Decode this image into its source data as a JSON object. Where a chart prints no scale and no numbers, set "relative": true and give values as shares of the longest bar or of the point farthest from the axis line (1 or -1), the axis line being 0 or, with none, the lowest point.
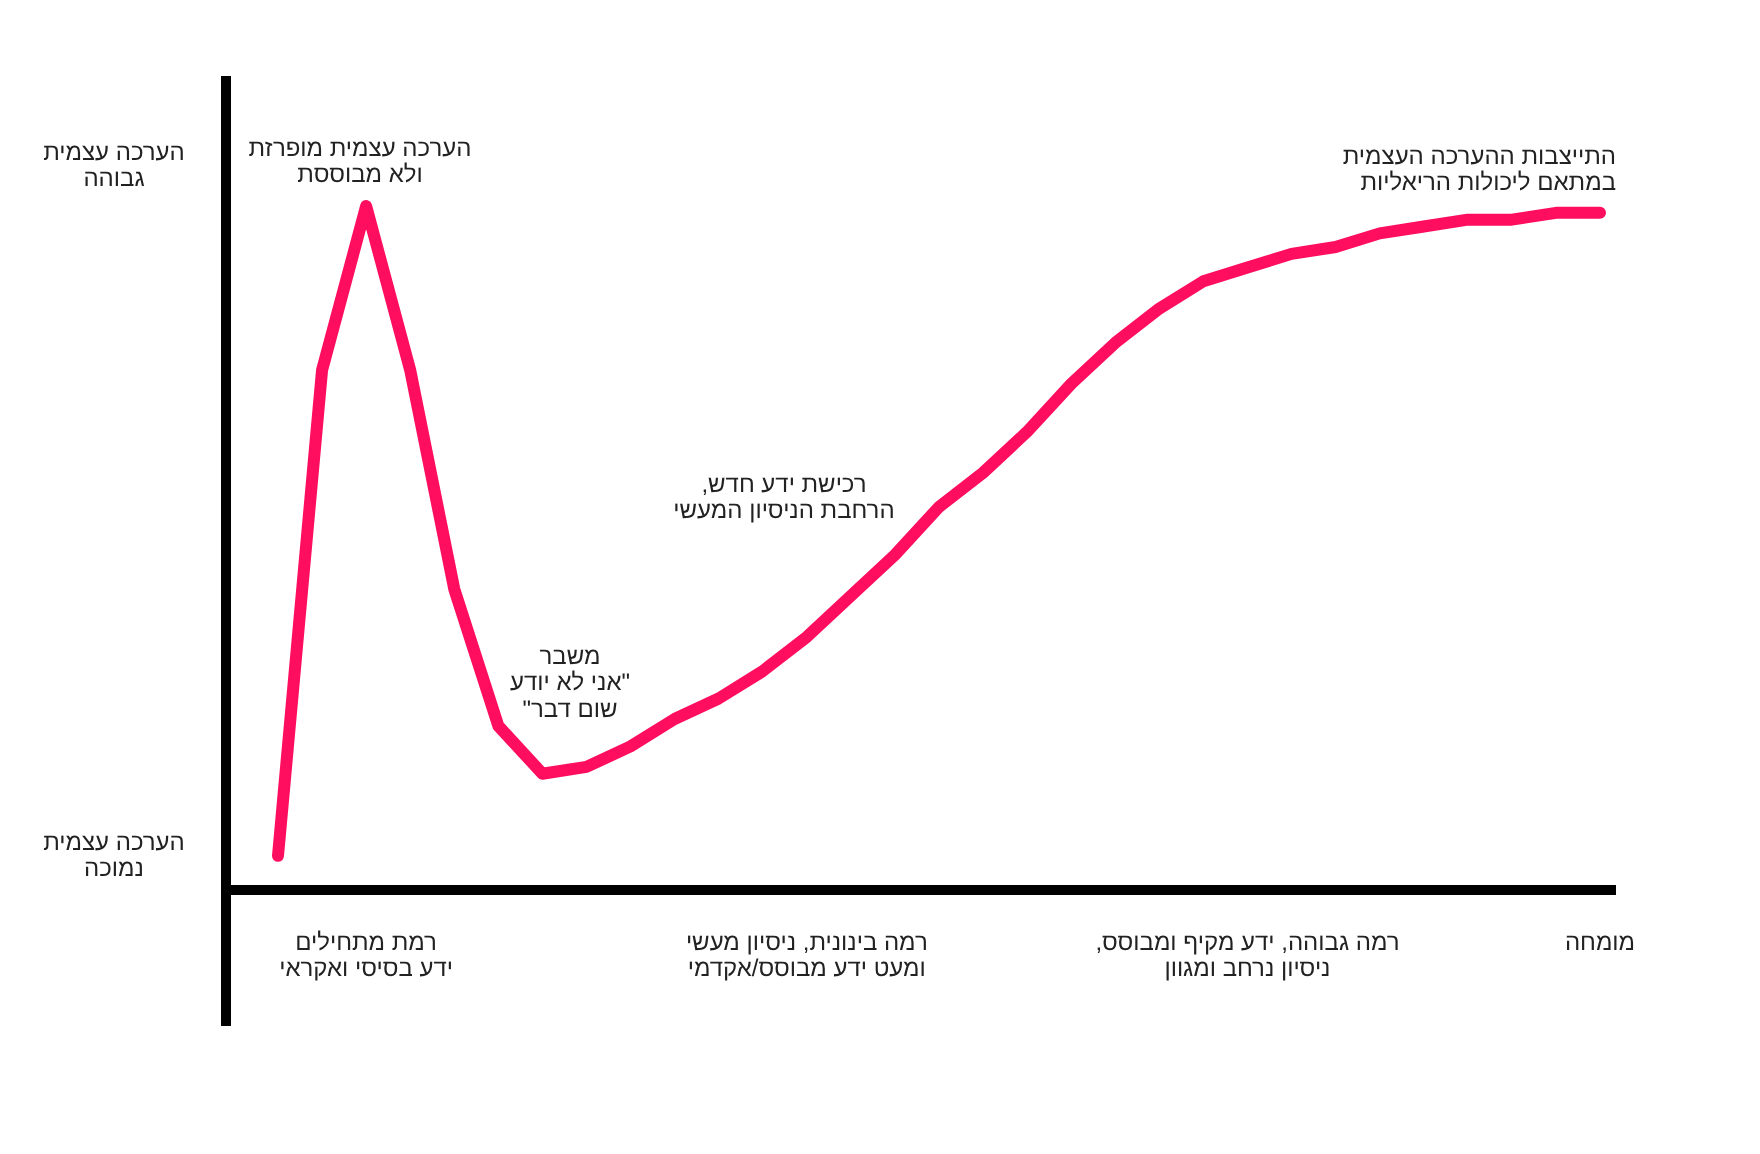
{
  "chart_data": {
    "type": "line",
    "relative": true,
    "categories": [
      null,
      null,
      "רמת מתחילים\nידע בסיסי ואקראי",
      null,
      null,
      null,
      null,
      null,
      null,
      null,
      null,
      null,
      "רמה בינונית, ניסיון מעשי\nומעט ידע מבוסס/אקדמי",
      null,
      null,
      null,
      null,
      null,
      null,
      null,
      null,
      null,
      "רמה גבוהה, ידע מקיף ומבוסס,\nניסיון נרחב ומגוון",
      null,
      null,
      null,
      null,
      null,
      null,
      null,
      "מומחה"
    ],
    "series": [
      {
        "color": "#ff0d5f",
        "values": [
          0.05,
          0.76,
          1.0,
          0.76,
          0.44,
          0.24,
          0.17,
          0.18,
          0.21,
          0.25,
          0.28,
          0.32,
          0.37,
          0.43,
          0.49,
          0.56,
          0.61,
          0.67,
          0.74,
          0.8,
          0.85,
          0.89,
          0.91,
          0.93,
          0.94,
          0.96,
          0.97,
          0.98,
          0.98,
          0.99,
          0.99
        ]
      }
    ],
    "annotations": [
      "הערכה עצמית\nגבוהה",
      "הערכה עצמית\nנמוכה",
      "הערכה עצמית מופרזת\nולא מבוססת",
      "משבר\n\"אני לא יודע\nשום דבר\"",
      "רכישת ידע חדש,\nהרחבת הניסיון המעשי",
      "התייצבות ההערכה העצמית\nבמתאם ליכולות הריאליות"
    ],
    "grid": false,
    "legend": false,
    "marker": "none",
    "line_style": "solid"
  }
}
